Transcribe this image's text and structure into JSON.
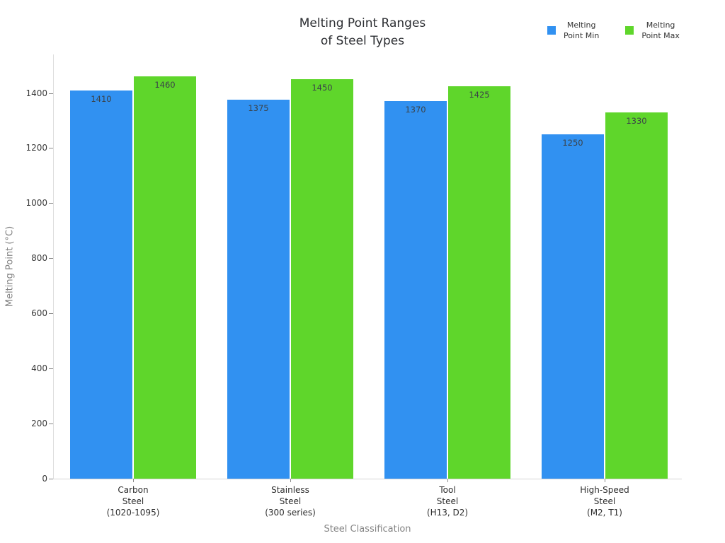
{
  "title": {
    "lines": [
      "Melting Point Ranges",
      "of Steel Types"
    ]
  },
  "legend": {
    "items": [
      {
        "lines": [
          "Melting",
          "Point Min"
        ],
        "color": "#3191f1"
      },
      {
        "lines": [
          "Melting",
          "Point Max"
        ],
        "color": "#5fd62b"
      }
    ]
  },
  "chart_data": {
    "type": "bar",
    "title": "Melting Point Ranges of Steel Types",
    "xlabel": "Steel Classification",
    "ylabel": "Melting Point (°C)",
    "categories": [
      [
        "Carbon",
        "Steel",
        "(1020-1095)"
      ],
      [
        "Stainless",
        "Steel",
        "(300 series)"
      ],
      [
        "Tool",
        "Steel",
        "(H13, D2)"
      ],
      [
        "High-Speed",
        "Steel",
        "(M2, T1)"
      ]
    ],
    "series": [
      {
        "name": "Melting Point Min",
        "color": "#3191f1",
        "values": [
          1410,
          1375,
          1370,
          1250
        ]
      },
      {
        "name": "Melting Point Max",
        "color": "#5fd62b",
        "values": [
          1460,
          1450,
          1425,
          1330
        ]
      }
    ],
    "yticks": [
      0,
      200,
      400,
      600,
      800,
      1000,
      1200,
      1400
    ],
    "ylim": [
      0,
      1540
    ],
    "grid": false,
    "legend_position": "top-right"
  }
}
